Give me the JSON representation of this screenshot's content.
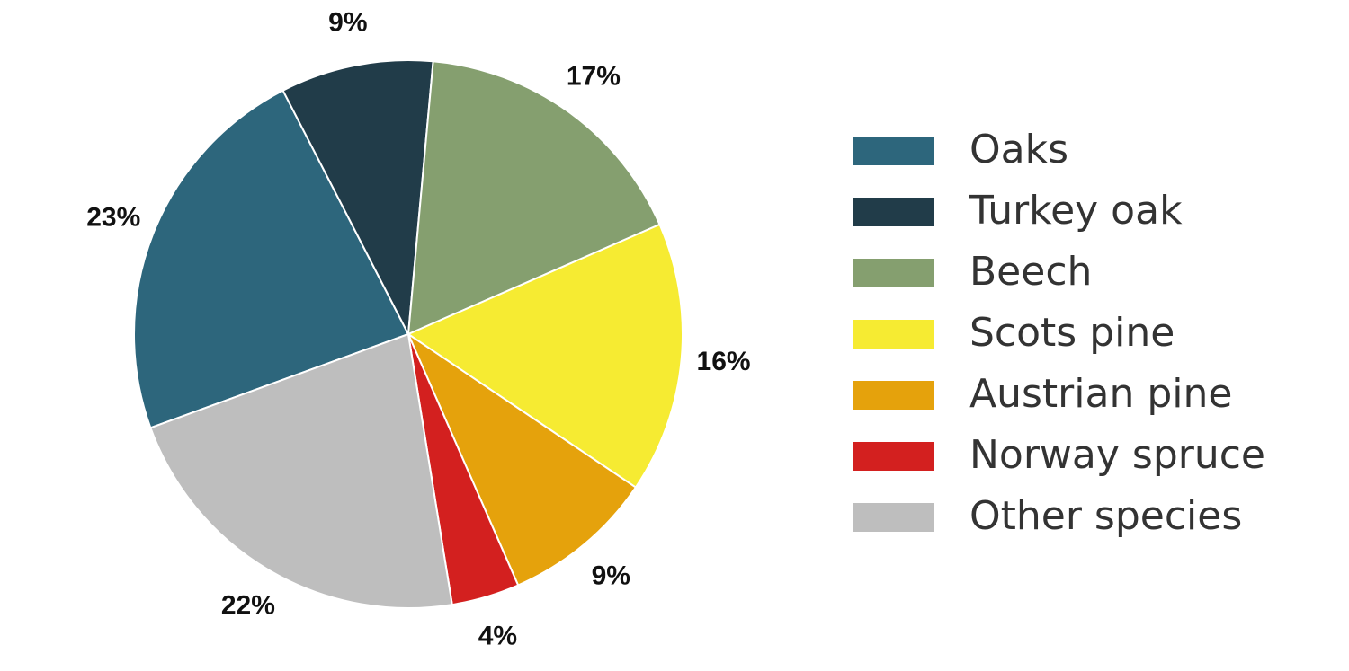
{
  "chart_data": {
    "type": "pie",
    "title": "",
    "legend_position": "right",
    "slices": [
      {
        "name": "Oaks",
        "value": 23,
        "label": "23%",
        "color": "#2d667c"
      },
      {
        "name": "Turkey oak",
        "value": 9,
        "label": "9%",
        "color": "#213c49"
      },
      {
        "name": "Beech",
        "value": 17,
        "label": "17%",
        "color": "#859f6f"
      },
      {
        "name": "Scots pine",
        "value": 16,
        "label": "16%",
        "color": "#f6eb32"
      },
      {
        "name": "Austrian pine",
        "value": 9,
        "label": "9%",
        "color": "#e5a20c"
      },
      {
        "name": "Norway spruce",
        "value": 4,
        "label": "4%",
        "color": "#d3201f"
      },
      {
        "name": "Other species",
        "value": 22,
        "label": "22%",
        "color": "#bebebe"
      }
    ]
  }
}
